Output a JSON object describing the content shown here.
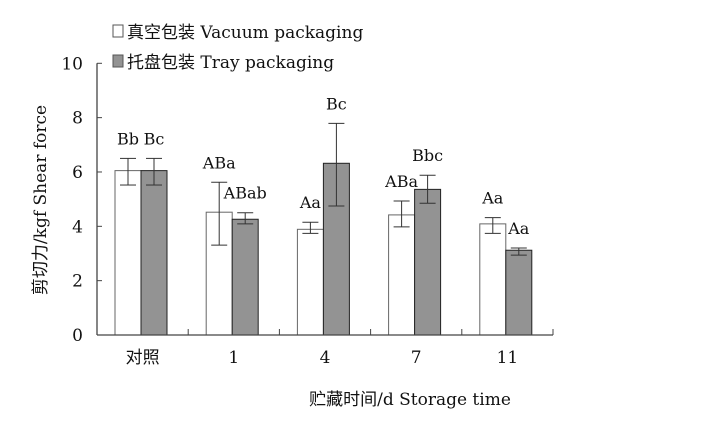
{
  "chart_data": {
    "type": "bar",
    "categories": [
      "对照",
      "1",
      "4",
      "7",
      "11"
    ],
    "xlabel": "贮藏时间/d Storage time",
    "ylabel": "剪切力/kgf Shear force",
    "ylim": [
      0,
      10
    ],
    "yticks": [
      0,
      2,
      4,
      6,
      8,
      10
    ],
    "grid": false,
    "legend_position": "top",
    "series": [
      {
        "name": "真空包装 Vacuum packaging",
        "color": "#ffffff",
        "values": [
          6.05,
          4.52,
          3.89,
          4.42,
          4.09
        ],
        "error_low": [
          5.52,
          3.31,
          3.74,
          3.98,
          3.74
        ],
        "error_high": [
          6.5,
          5.62,
          4.15,
          4.93,
          4.32
        ],
        "labels": [
          "Bb",
          "ABa",
          "Aa",
          "ABa",
          "Aa"
        ]
      },
      {
        "name": "托盘包装 Tray packaging",
        "color": "#939393",
        "values": [
          6.05,
          4.26,
          6.32,
          5.36,
          3.12
        ],
        "error_low": [
          5.52,
          4.09,
          4.75,
          4.85,
          2.94
        ],
        "error_high": [
          6.5,
          4.5,
          7.79,
          5.88,
          3.2
        ],
        "labels": [
          "Bc",
          "ABab",
          "Bc",
          "Bbc",
          "Aa"
        ]
      }
    ]
  }
}
